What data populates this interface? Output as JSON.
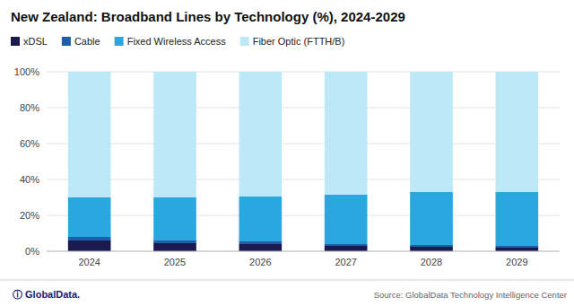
{
  "chart_data": {
    "type": "bar",
    "stacked": true,
    "title": "New Zealand: Broadband Lines by Technology (%), 2024-2029",
    "categories": [
      "2024",
      "2025",
      "2026",
      "2027",
      "2028",
      "2029"
    ],
    "series": [
      {
        "name": "xDSL",
        "values": [
          6.0,
          4.5,
          4.0,
          3.0,
          2.5,
          2.0
        ],
        "color": "#1a1a4e"
      },
      {
        "name": "Cable",
        "values": [
          2.0,
          1.5,
          1.5,
          1.0,
          1.0,
          1.0
        ],
        "color": "#1e5fa8"
      },
      {
        "name": "Fixed Wireless Access",
        "values": [
          22.0,
          24.0,
          25.0,
          27.5,
          29.5,
          30.0
        ],
        "color": "#29a8e0"
      },
      {
        "name": "Fiber Optic (FTTH/B)",
        "values": [
          70.0,
          70.0,
          69.5,
          68.5,
          67.0,
          67.0
        ],
        "color": "#bde8f7"
      }
    ],
    "ylim": [
      0,
      100
    ],
    "yticks": [
      {
        "value": 0,
        "label": "0%"
      },
      {
        "value": 20,
        "label": "20%"
      },
      {
        "value": 40,
        "label": "40%"
      },
      {
        "value": 60,
        "label": "60%"
      },
      {
        "value": 80,
        "label": "80%"
      },
      {
        "value": 100,
        "label": "100%"
      }
    ],
    "grid": true,
    "legend": "top-left",
    "annotations": [
      "ⓘ GlobalData.",
      "Source: GlobalData Technology Intelligence Center"
    ]
  }
}
